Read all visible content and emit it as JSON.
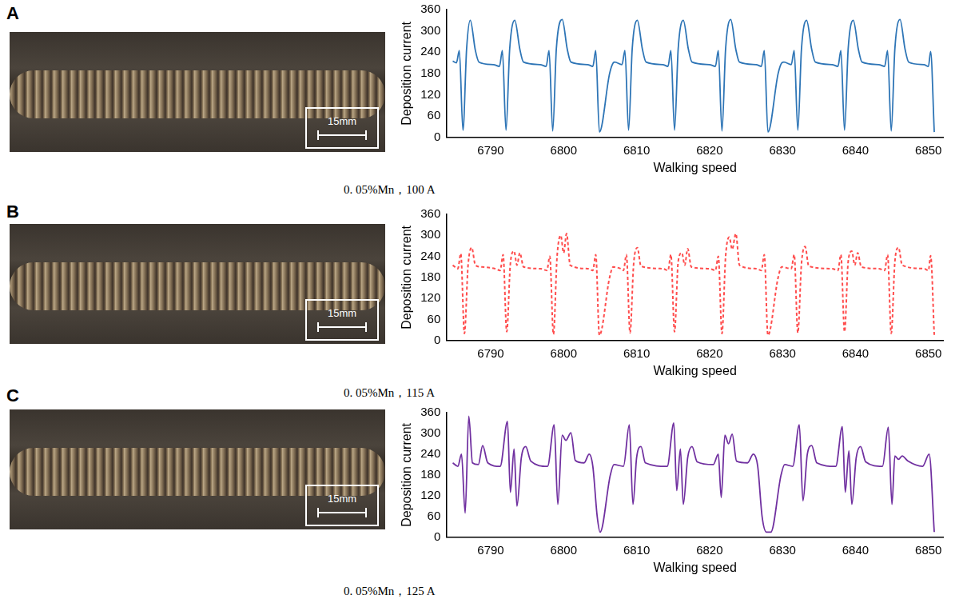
{
  "chart_data": [
    {
      "panel": "A",
      "type": "line",
      "caption": "0. 05%Mn，100 A",
      "scale_bar_label": "15mm",
      "xlabel": "Walking speed",
      "ylabel": "Deposition current",
      "color": "#2e75b6",
      "line_style": "solid",
      "grid": false,
      "xlim": [
        6784,
        6852
      ],
      "xticks": [
        6790,
        6800,
        6810,
        6820,
        6830,
        6840,
        6850
      ],
      "ylim": [
        0,
        360
      ],
      "yticks": [
        0,
        60,
        120,
        180,
        240,
        300,
        360
      ],
      "x": [
        6784.8,
        6785.3,
        6785.7,
        6786.2,
        6786.7,
        6787.2,
        6787.9,
        6788.4,
        6790.4,
        6791.2,
        6791.6,
        6792.1,
        6792.6,
        6793.3,
        6794.0,
        6794.5,
        6796.8,
        6797.6,
        6798.0,
        6798.5,
        6799.0,
        6799.8,
        6800.5,
        6801.0,
        6803.3,
        6804.0,
        6804.4,
        6804.9,
        6806.3,
        6806.8,
        6807.0,
        6808.0,
        6808.4,
        6808.9,
        6809.4,
        6810.1,
        6810.8,
        6811.3,
        6813.6,
        6814.3,
        6814.7,
        6815.2,
        6815.7,
        6816.4,
        6817.1,
        6817.6,
        6820.0,
        6820.8,
        6821.2,
        6821.7,
        6822.2,
        6822.9,
        6823.6,
        6824.1,
        6826.4,
        6827.1,
        6827.5,
        6828.0,
        6829.4,
        6829.9,
        6830.2,
        6831.2,
        6831.6,
        6832.1,
        6832.6,
        6833.3,
        6834.0,
        6834.5,
        6836.8,
        6837.6,
        6838.0,
        6838.5,
        6839.0,
        6839.7,
        6840.4,
        6840.9,
        6843.2,
        6844.0,
        6844.4,
        6844.9,
        6845.4,
        6846.1,
        6846.8,
        6847.3,
        6849.4,
        6850.0,
        6850.3,
        6850.8
      ],
      "values": [
        215,
        210,
        245,
        20,
        250,
        330,
        245,
        212,
        205,
        200,
        245,
        20,
        248,
        330,
        248,
        212,
        205,
        200,
        245,
        18,
        250,
        332,
        248,
        212,
        205,
        200,
        245,
        15,
        180,
        210,
        212,
        205,
        245,
        20,
        250,
        330,
        248,
        212,
        205,
        200,
        245,
        20,
        250,
        330,
        248,
        212,
        205,
        200,
        245,
        18,
        250,
        332,
        248,
        212,
        205,
        200,
        245,
        15,
        180,
        210,
        212,
        205,
        245,
        20,
        250,
        330,
        248,
        212,
        205,
        200,
        245,
        20,
        250,
        330,
        248,
        212,
        205,
        200,
        245,
        18,
        250,
        332,
        248,
        212,
        205,
        200,
        242,
        15
      ]
    },
    {
      "panel": "B",
      "type": "line",
      "caption": "0. 05%Mn，115 A",
      "scale_bar_label": "15mm",
      "xlabel": "Walking speed",
      "ylabel": "Deposition current",
      "color": "#ff4d4d",
      "line_style": "dashed",
      "grid": false,
      "xlim": [
        6784,
        6852
      ],
      "xticks": [
        6790,
        6800,
        6810,
        6820,
        6830,
        6840,
        6850
      ],
      "ylim": [
        0,
        360
      ],
      "yticks": [
        0,
        60,
        120,
        180,
        240,
        300,
        360
      ],
      "x": [
        6784.8,
        6785.5,
        6785.9,
        6786.4,
        6786.9,
        6787.4,
        6787.9,
        6788.8,
        6790.6,
        6791.3,
        6791.7,
        6792.2,
        6792.7,
        6793.2,
        6793.6,
        6794.0,
        6794.5,
        6796.8,
        6797.7,
        6798.1,
        6798.6,
        6799.1,
        6799.6,
        6800.0,
        6800.4,
        6800.9,
        6803.3,
        6804.0,
        6804.4,
        6804.9,
        6806.3,
        6806.8,
        6807.8,
        6808.2,
        6808.6,
        6809.1,
        6809.6,
        6810.1,
        6810.6,
        6813.6,
        6814.3,
        6814.7,
        6815.2,
        6815.7,
        6816.2,
        6816.6,
        6817.0,
        6817.5,
        6820.0,
        6820.8,
        6821.2,
        6821.7,
        6822.2,
        6822.7,
        6823.1,
        6823.6,
        6824.1,
        6826.4,
        6827.1,
        6827.5,
        6828.0,
        6829.4,
        6829.9,
        6831.2,
        6831.6,
        6832.1,
        6832.6,
        6833.1,
        6833.6,
        6836.8,
        6837.6,
        6838.0,
        6838.5,
        6839.0,
        6839.5,
        6839.9,
        6840.3,
        6840.8,
        6843.2,
        6844.0,
        6844.4,
        6844.9,
        6845.4,
        6845.9,
        6846.4,
        6849.4,
        6850.0,
        6850.3,
        6850.8
      ],
      "values": [
        215,
        205,
        248,
        20,
        215,
        265,
        215,
        210,
        205,
        200,
        245,
        25,
        220,
        255,
        215,
        250,
        210,
        205,
        200,
        240,
        18,
        240,
        300,
        250,
        305,
        215,
        205,
        200,
        245,
        15,
        180,
        210,
        205,
        200,
        245,
        22,
        220,
        265,
        212,
        205,
        200,
        245,
        25,
        225,
        250,
        215,
        262,
        210,
        205,
        200,
        240,
        20,
        240,
        295,
        260,
        305,
        215,
        205,
        200,
        245,
        15,
        180,
        210,
        205,
        245,
        22,
        220,
        268,
        212,
        205,
        200,
        245,
        25,
        225,
        255,
        215,
        250,
        210,
        205,
        200,
        245,
        20,
        225,
        265,
        215,
        205,
        200,
        242,
        15
      ]
    },
    {
      "panel": "C",
      "type": "line",
      "caption": "0. 05%Mn，125 A",
      "scale_bar_label": "15mm",
      "xlabel": "Walking speed",
      "ylabel": "Deposition current",
      "color": "#7030a0",
      "line_style": "solid",
      "grid": false,
      "xlim": [
        6784,
        6852
      ],
      "xticks": [
        6790,
        6800,
        6810,
        6820,
        6830,
        6840,
        6850
      ],
      "ylim": [
        0,
        360
      ],
      "yticks": [
        0,
        60,
        120,
        180,
        240,
        300,
        360
      ],
      "x": [
        6784.8,
        6785.5,
        6786.0,
        6786.5,
        6787.0,
        6787.5,
        6788.3,
        6788.9,
        6789.6,
        6791.3,
        6792.3,
        6792.7,
        6793.2,
        6793.6,
        6794.2,
        6794.8,
        6795.5,
        6797.8,
        6798.7,
        6799.2,
        6799.8,
        6800.3,
        6801.0,
        6801.6,
        6802.8,
        6803.5,
        6804.0,
        6804.6,
        6805.0,
        6806.4,
        6806.9,
        6808.2,
        6809.0,
        6809.5,
        6810.0,
        6810.6,
        6811.2,
        6814.2,
        6815.1,
        6815.5,
        6816.0,
        6816.4,
        6817.0,
        6817.6,
        6818.3,
        6820.5,
        6821.2,
        6821.6,
        6822.1,
        6822.6,
        6823.1,
        6823.7,
        6825.2,
        6826.0,
        6826.6,
        6827.2,
        6827.8,
        6828.4,
        6829.8,
        6830.3,
        6831.4,
        6832.3,
        6832.8,
        6833.4,
        6834.0,
        6834.7,
        6837.3,
        6838.2,
        6838.6,
        6839.1,
        6839.5,
        6840.1,
        6840.7,
        6841.4,
        6843.7,
        6844.5,
        6845.0,
        6845.4,
        6845.9,
        6846.4,
        6847.2,
        6849.2,
        6850.1,
        6850.8
      ],
      "values": [
        215,
        205,
        240,
        70,
        350,
        215,
        210,
        265,
        215,
        205,
        335,
        130,
        255,
        90,
        230,
        262,
        220,
        205,
        325,
        95,
        295,
        280,
        302,
        222,
        215,
        240,
        205,
        60,
        15,
        180,
        210,
        205,
        325,
        95,
        230,
        262,
        215,
        205,
        330,
        135,
        255,
        95,
        230,
        262,
        218,
        210,
        240,
        115,
        295,
        270,
        298,
        220,
        215,
        240,
        205,
        60,
        15,
        15,
        180,
        210,
        205,
        325,
        105,
        240,
        265,
        215,
        205,
        320,
        130,
        250,
        95,
        230,
        262,
        218,
        205,
        318,
        95,
        235,
        225,
        235,
        220,
        205,
        240,
        15
      ]
    }
  ]
}
